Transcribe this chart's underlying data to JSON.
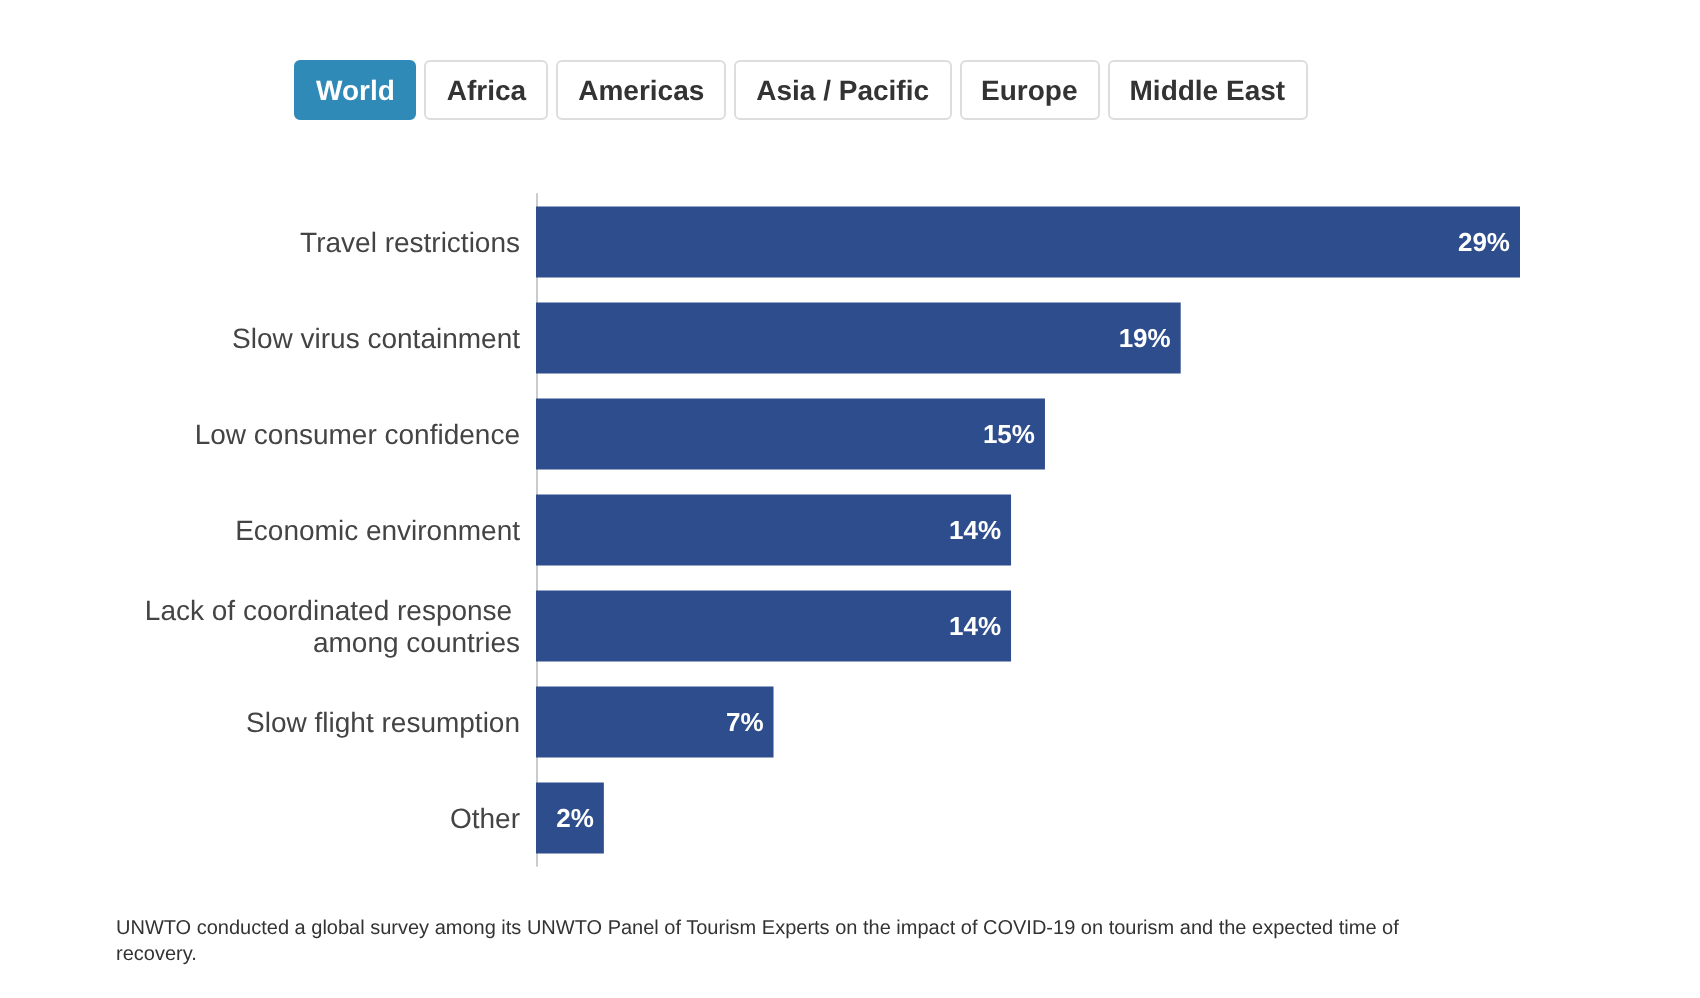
{
  "chart_data": {
    "type": "bar",
    "orientation": "horizontal",
    "categories": [
      "Travel restrictions",
      "Slow virus containment",
      "Low consumer confidence",
      "Economic environment",
      "Lack of coordinated response among countries",
      "Slow flight resumption",
      "Other"
    ],
    "values": [
      29,
      19,
      15,
      14,
      14,
      7,
      2
    ],
    "color": "#2e4d8c",
    "value_labels": [
      "29%",
      "19%",
      "15%",
      "14%",
      "14%",
      "7%",
      "2%"
    ],
    "annotations": [
      "World",
      "Africa",
      "Americas",
      "Asia / Pacific",
      "Europe",
      "Middle East",
      "UNWTO conducted a global survey among its UNWTO Panel of Tourism Experts on the impact of COVID-19 on tourism and the expected time of recovery."
    ]
  }
}
